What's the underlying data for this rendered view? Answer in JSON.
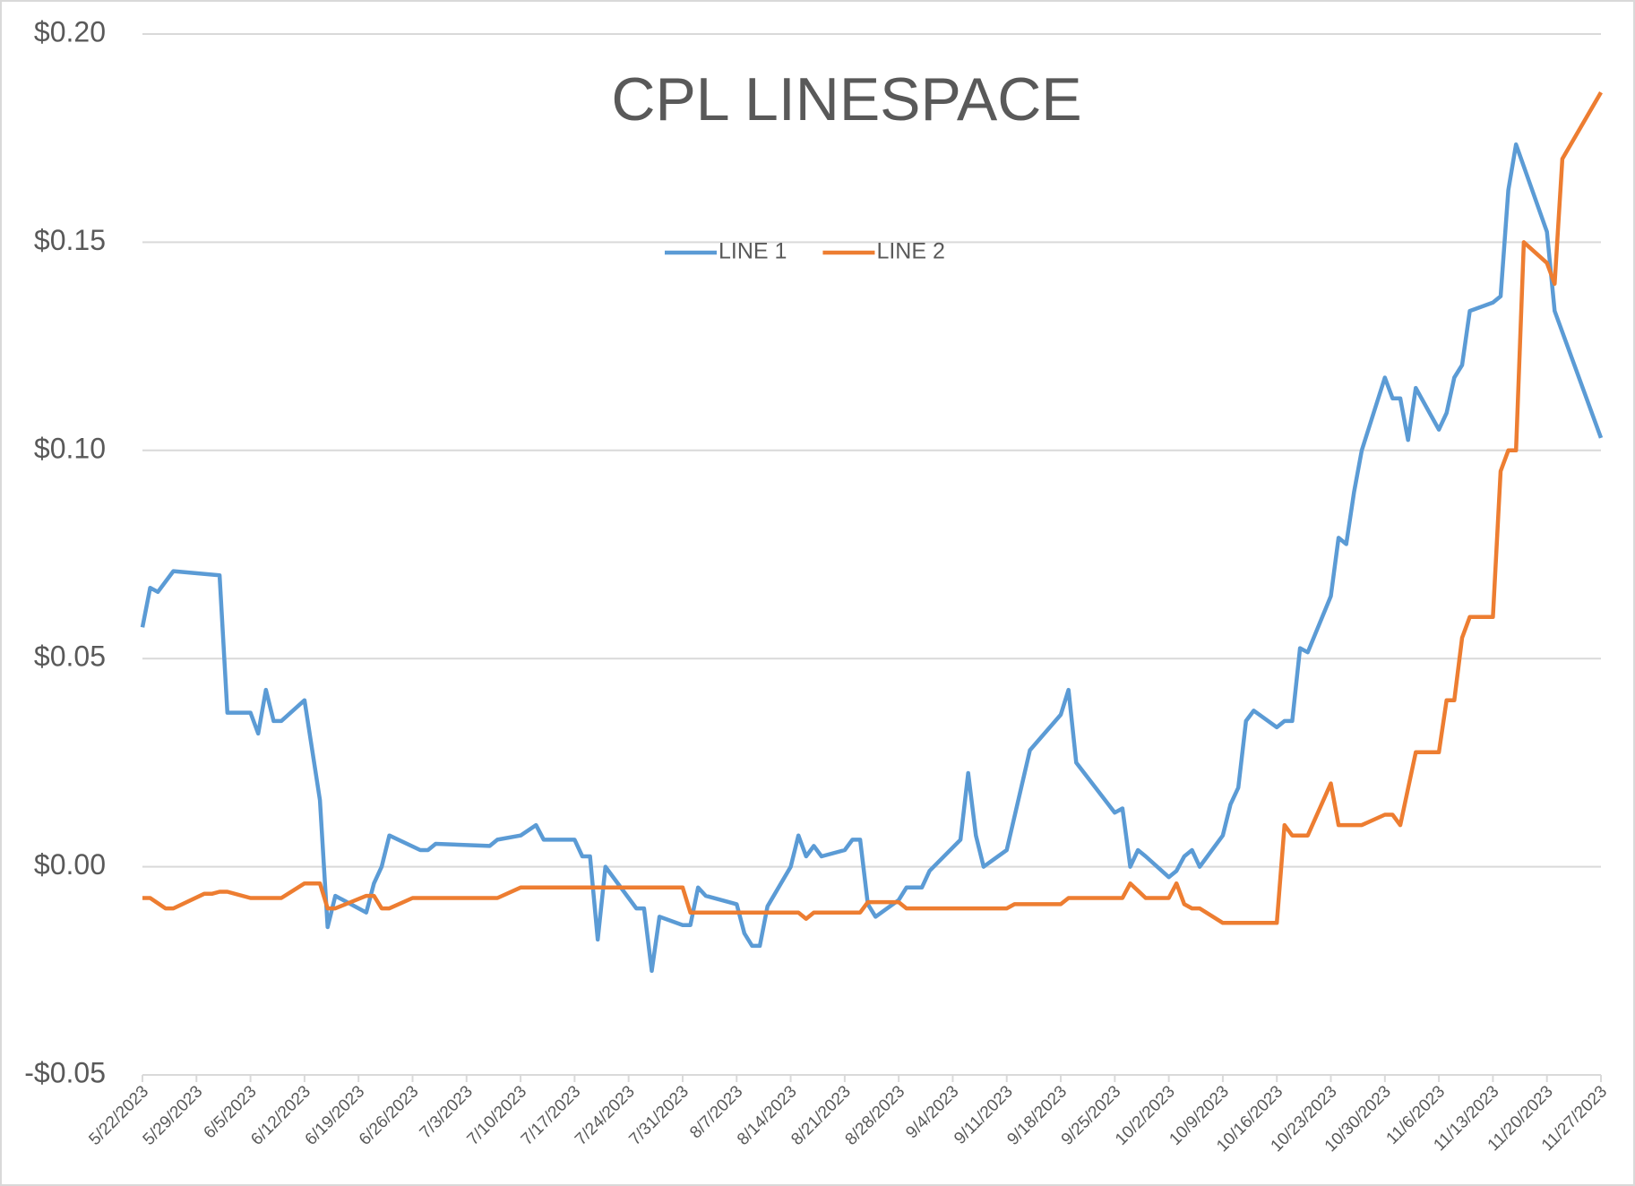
{
  "chart_data": {
    "type": "line",
    "title": "CPL LINESPACE",
    "legend": "top",
    "grid": true,
    "xlim": [
      "5/22/2023",
      "11/27/2023"
    ],
    "xticks": [
      "5/22/2023",
      "5/29/2023",
      "6/5/2023",
      "6/12/2023",
      "6/19/2023",
      "6/26/2023",
      "7/3/2023",
      "7/10/2023",
      "7/17/2023",
      "7/24/2023",
      "7/31/2023",
      "8/7/2023",
      "8/14/2023",
      "8/21/2023",
      "8/28/2023",
      "9/4/2023",
      "9/11/2023",
      "9/18/2023",
      "9/25/2023",
      "10/2/2023",
      "10/9/2023",
      "10/16/2023",
      "10/23/2023",
      "10/30/2023",
      "11/6/2023",
      "11/13/2023",
      "11/20/2023",
      "11/27/2023"
    ],
    "ylim": [
      -0.05,
      0.2
    ],
    "yticks": [
      {
        "value": -0.05,
        "label": "-$0.05"
      },
      {
        "value": 0,
        "label": "$0.00"
      },
      {
        "value": 0.05,
        "label": "$0.05"
      },
      {
        "value": 0.1,
        "label": "$0.10"
      },
      {
        "value": 0.15,
        "label": "$0.15"
      },
      {
        "value": 0.2,
        "label": "$0.20"
      }
    ],
    "series": [
      {
        "name": "LINE 1",
        "color": "#5b9bd5",
        "x": [
          "5/22/2023",
          "5/23/2023",
          "5/24/2023",
          "5/26/2023",
          "6/1/2023",
          "6/2/2023",
          "6/5/2023",
          "6/6/2023",
          "6/7/2023",
          "6/8/2023",
          "6/9/2023",
          "6/12/2023",
          "6/14/2023",
          "6/15/2023",
          "6/16/2023",
          "6/20/2023",
          "6/21/2023",
          "6/22/2023",
          "6/23/2023",
          "6/27/2023",
          "6/28/2023",
          "6/29/2023",
          "7/6/2023",
          "7/7/2023",
          "7/10/2023",
          "7/12/2023",
          "7/13/2023",
          "7/17/2023",
          "7/18/2023",
          "7/19/2023",
          "7/20/2023",
          "7/21/2023",
          "7/25/2023",
          "7/26/2023",
          "7/27/2023",
          "7/28/2023",
          "7/31/2023",
          "8/1/2023",
          "8/2/2023",
          "8/3/2023",
          "8/7/2023",
          "8/8/2023",
          "8/9/2023",
          "8/10/2023",
          "8/11/2023",
          "8/14/2023",
          "8/15/2023",
          "8/16/2023",
          "8/17/2023",
          "8/18/2023",
          "8/21/2023",
          "8/22/2023",
          "8/23/2023",
          "8/24/2023",
          "8/25/2023",
          "8/28/2023",
          "8/29/2023",
          "8/31/2023",
          "9/1/2023",
          "9/5/2023",
          "9/6/2023",
          "9/7/2023",
          "9/8/2023",
          "9/11/2023",
          "9/14/2023",
          "9/18/2023",
          "9/19/2023",
          "9/20/2023",
          "9/25/2023",
          "9/26/2023",
          "9/27/2023",
          "9/28/2023",
          "9/29/2023",
          "10/2/2023",
          "10/3/2023",
          "10/4/2023",
          "10/5/2023",
          "10/6/2023",
          "10/9/2023",
          "10/10/2023",
          "10/11/2023",
          "10/12/2023",
          "10/13/2023",
          "10/16/2023",
          "10/17/2023",
          "10/18/2023",
          "10/19/2023",
          "10/20/2023",
          "10/23/2023",
          "10/24/2023",
          "10/25/2023",
          "10/26/2023",
          "10/27/2023",
          "10/30/2023",
          "10/31/2023",
          "11/1/2023",
          "11/2/2023",
          "11/3/2023",
          "11/6/2023",
          "11/7/2023",
          "11/8/2023",
          "11/9/2023",
          "11/10/2023",
          "11/13/2023",
          "11/14/2023",
          "11/15/2023",
          "11/16/2023",
          "11/20/2023",
          "11/21/2023",
          "11/27/2023"
        ],
        "values": [
          0.0575,
          0.067,
          0.066,
          0.071,
          0.07,
          0.037,
          0.037,
          0.032,
          0.0425,
          0.035,
          0.035,
          0.04,
          0.016,
          -0.0145,
          -0.007,
          -0.011,
          -0.004,
          0.0,
          0.0075,
          0.004,
          0.004,
          0.0055,
          0.005,
          0.0065,
          0.0075,
          0.01,
          0.0065,
          0.0065,
          0.0025,
          0.0025,
          -0.0175,
          0.0,
          -0.01,
          -0.01,
          -0.025,
          -0.012,
          -0.014,
          -0.014,
          -0.005,
          -0.007,
          -0.009,
          -0.016,
          -0.019,
          -0.019,
          -0.0095,
          0.0,
          0.0075,
          0.0025,
          0.005,
          0.0025,
          0.004,
          0.0065,
          0.0065,
          -0.009,
          -0.012,
          -0.008,
          -0.005,
          -0.005,
          -0.001,
          0.0065,
          0.0225,
          0.0075,
          0.0,
          0.004,
          0.028,
          0.0365,
          0.0425,
          0.025,
          0.013,
          0.014,
          0.0,
          0.004,
          0.0025,
          -0.0025,
          -0.001,
          0.0025,
          0.004,
          0.0,
          0.0075,
          0.015,
          0.019,
          0.035,
          0.0375,
          0.0335,
          0.035,
          0.035,
          0.0525,
          0.0515,
          0.065,
          0.079,
          0.0775,
          0.09,
          0.1,
          0.1175,
          0.1125,
          0.1125,
          0.1025,
          0.115,
          0.105,
          0.109,
          0.1175,
          0.1205,
          0.1335,
          0.1355,
          0.137,
          0.1625,
          0.1735,
          0.1525,
          0.1335,
          0.103
        ]
      },
      {
        "name": "LINE 2",
        "color": "#ed7d31",
        "x": [
          "5/22/2023",
          "5/23/2023",
          "5/25/2023",
          "5/26/2023",
          "5/30/2023",
          "5/31/2023",
          "6/1/2023",
          "6/2/2023",
          "6/5/2023",
          "6/9/2023",
          "6/12/2023",
          "6/14/2023",
          "6/15/2023",
          "6/16/2023",
          "6/20/2023",
          "6/21/2023",
          "6/22/2023",
          "6/23/2023",
          "6/26/2023",
          "7/7/2023",
          "7/10/2023",
          "7/31/2023",
          "8/1/2023",
          "8/15/2023",
          "8/16/2023",
          "8/17/2023",
          "8/23/2023",
          "8/24/2023",
          "8/28/2023",
          "8/29/2023",
          "9/11/2023",
          "9/12/2023",
          "9/18/2023",
          "9/19/2023",
          "9/26/2023",
          "9/27/2023",
          "9/29/2023",
          "10/2/2023",
          "10/3/2023",
          "10/4/2023",
          "10/5/2023",
          "10/6/2023",
          "10/9/2023",
          "10/16/2023",
          "10/17/2023",
          "10/18/2023",
          "10/20/2023",
          "10/23/2023",
          "10/24/2023",
          "10/27/2023",
          "10/30/2023",
          "10/31/2023",
          "11/1/2023",
          "11/3/2023",
          "11/6/2023",
          "11/7/2023",
          "11/8/2023",
          "11/9/2023",
          "11/10/2023",
          "11/13/2023",
          "11/14/2023",
          "11/15/2023",
          "11/16/2023",
          "11/17/2023",
          "11/20/2023",
          "11/21/2023",
          "11/22/2023",
          "11/27/2023"
        ],
        "values": [
          -0.0075,
          -0.0075,
          -0.01,
          -0.01,
          -0.0065,
          -0.0065,
          -0.006,
          -0.006,
          -0.0075,
          -0.0075,
          -0.004,
          -0.004,
          -0.01,
          -0.01,
          -0.007,
          -0.007,
          -0.01,
          -0.01,
          -0.0075,
          -0.0075,
          -0.005,
          -0.005,
          -0.011,
          -0.011,
          -0.0125,
          -0.011,
          -0.011,
          -0.0085,
          -0.0085,
          -0.01,
          -0.01,
          -0.009,
          -0.009,
          -0.0075,
          -0.0075,
          -0.004,
          -0.0075,
          -0.0075,
          -0.004,
          -0.009,
          -0.01,
          -0.01,
          -0.0135,
          -0.0135,
          0.01,
          0.0075,
          0.0075,
          0.02,
          0.01,
          0.01,
          0.0125,
          0.0125,
          0.01,
          0.0275,
          0.0275,
          0.04,
          0.04,
          0.055,
          0.06,
          0.06,
          0.095,
          0.1,
          0.1,
          0.15,
          0.145,
          0.14,
          0.17,
          0.186
        ]
      }
    ]
  }
}
